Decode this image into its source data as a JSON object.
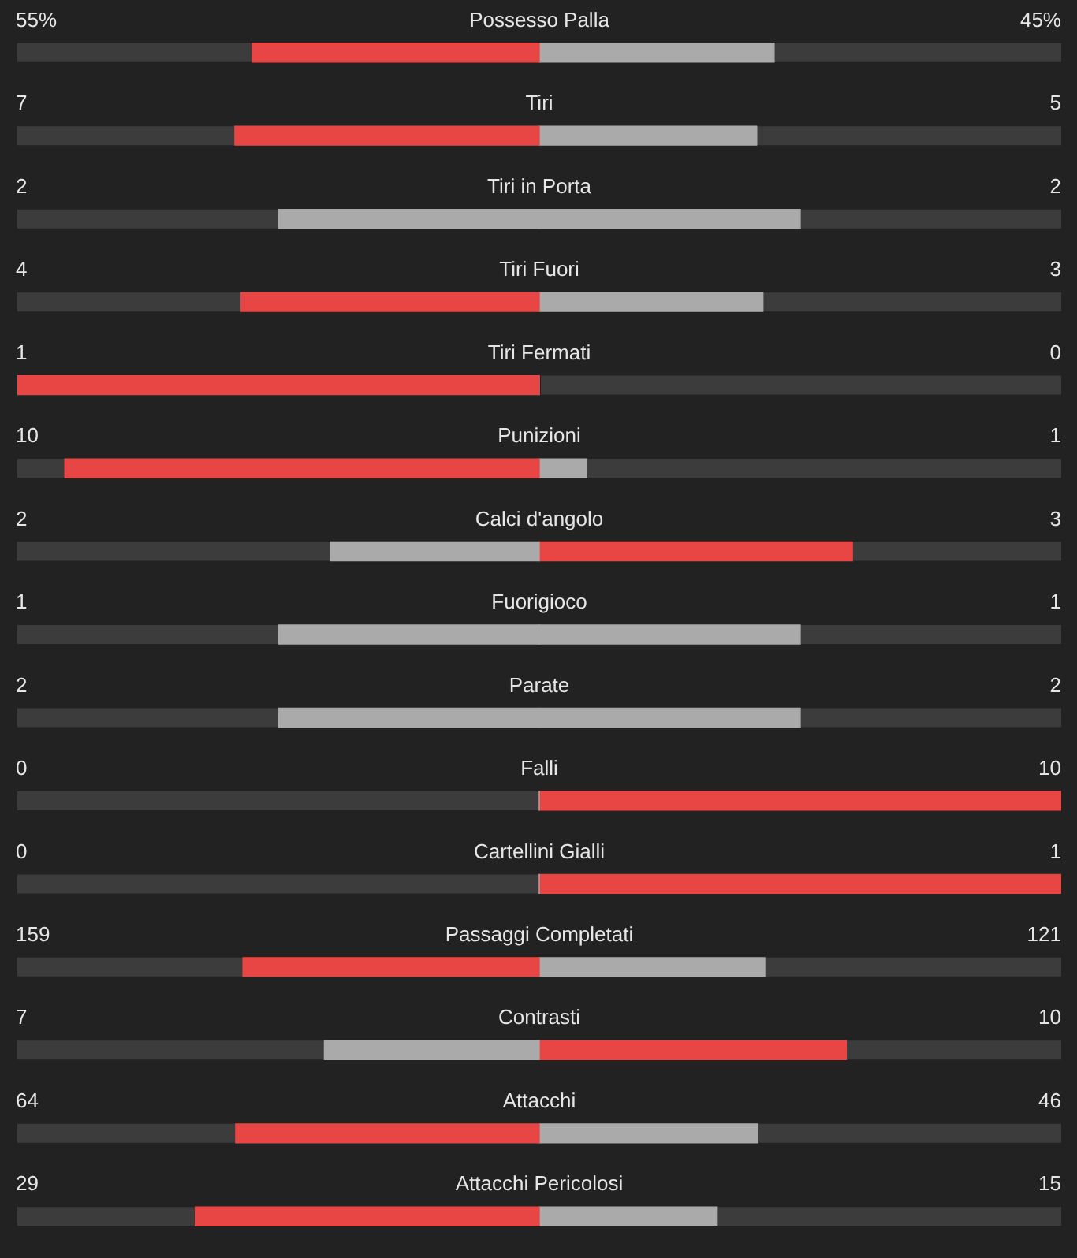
{
  "chart_data": {
    "type": "other",
    "categories": [
      "Possesso Palla",
      "Tiri",
      "Tiri in Porta",
      "Tiri Fuori",
      "Tiri Fermati",
      "Punizioni",
      "Calci d'angolo",
      "Fuorigioco",
      "Parate",
      "Falli",
      "Cartellini Gialli",
      "Passaggi Completati",
      "Contrasti",
      "Attacchi",
      "Attacchi Pericolosi"
    ],
    "series": [
      {
        "values": [
          55,
          7,
          2,
          4,
          1,
          10,
          2,
          1,
          2,
          0,
          0,
          159,
          7,
          64,
          29
        ],
        "value_labels": [
          "55%",
          "7",
          "2",
          "4",
          "1",
          "10",
          "2",
          "1",
          "2",
          "0",
          "0",
          "159",
          "7",
          "64",
          "29"
        ],
        "colors": [
          "#e84545",
          "#e84545",
          "#aaaaaa",
          "#e84545",
          "#e84545",
          "#e84545",
          "#aaaaaa",
          "#aaaaaa",
          "#aaaaaa",
          "#aaaaaa",
          "#aaaaaa",
          "#e84545",
          "#aaaaaa",
          "#e84545",
          "#e84545"
        ]
      },
      {
        "values": [
          45,
          5,
          2,
          3,
          0,
          1,
          3,
          1,
          2,
          10,
          1,
          121,
          10,
          46,
          15
        ],
        "value_labels": [
          "45%",
          "5",
          "2",
          "3",
          "0",
          "1",
          "3",
          "1",
          "2",
          "10",
          "1",
          "121",
          "10",
          "46",
          "15"
        ],
        "colors": [
          "#aaaaaa",
          "#aaaaaa",
          "#aaaaaa",
          "#aaaaaa",
          "#aaaaaa",
          "#aaaaaa",
          "#e84545",
          "#aaaaaa",
          "#aaaaaa",
          "#e84545",
          "#e84545",
          "#aaaaaa",
          "#e84545",
          "#aaaaaa",
          "#aaaaaa"
        ]
      }
    ]
  }
}
